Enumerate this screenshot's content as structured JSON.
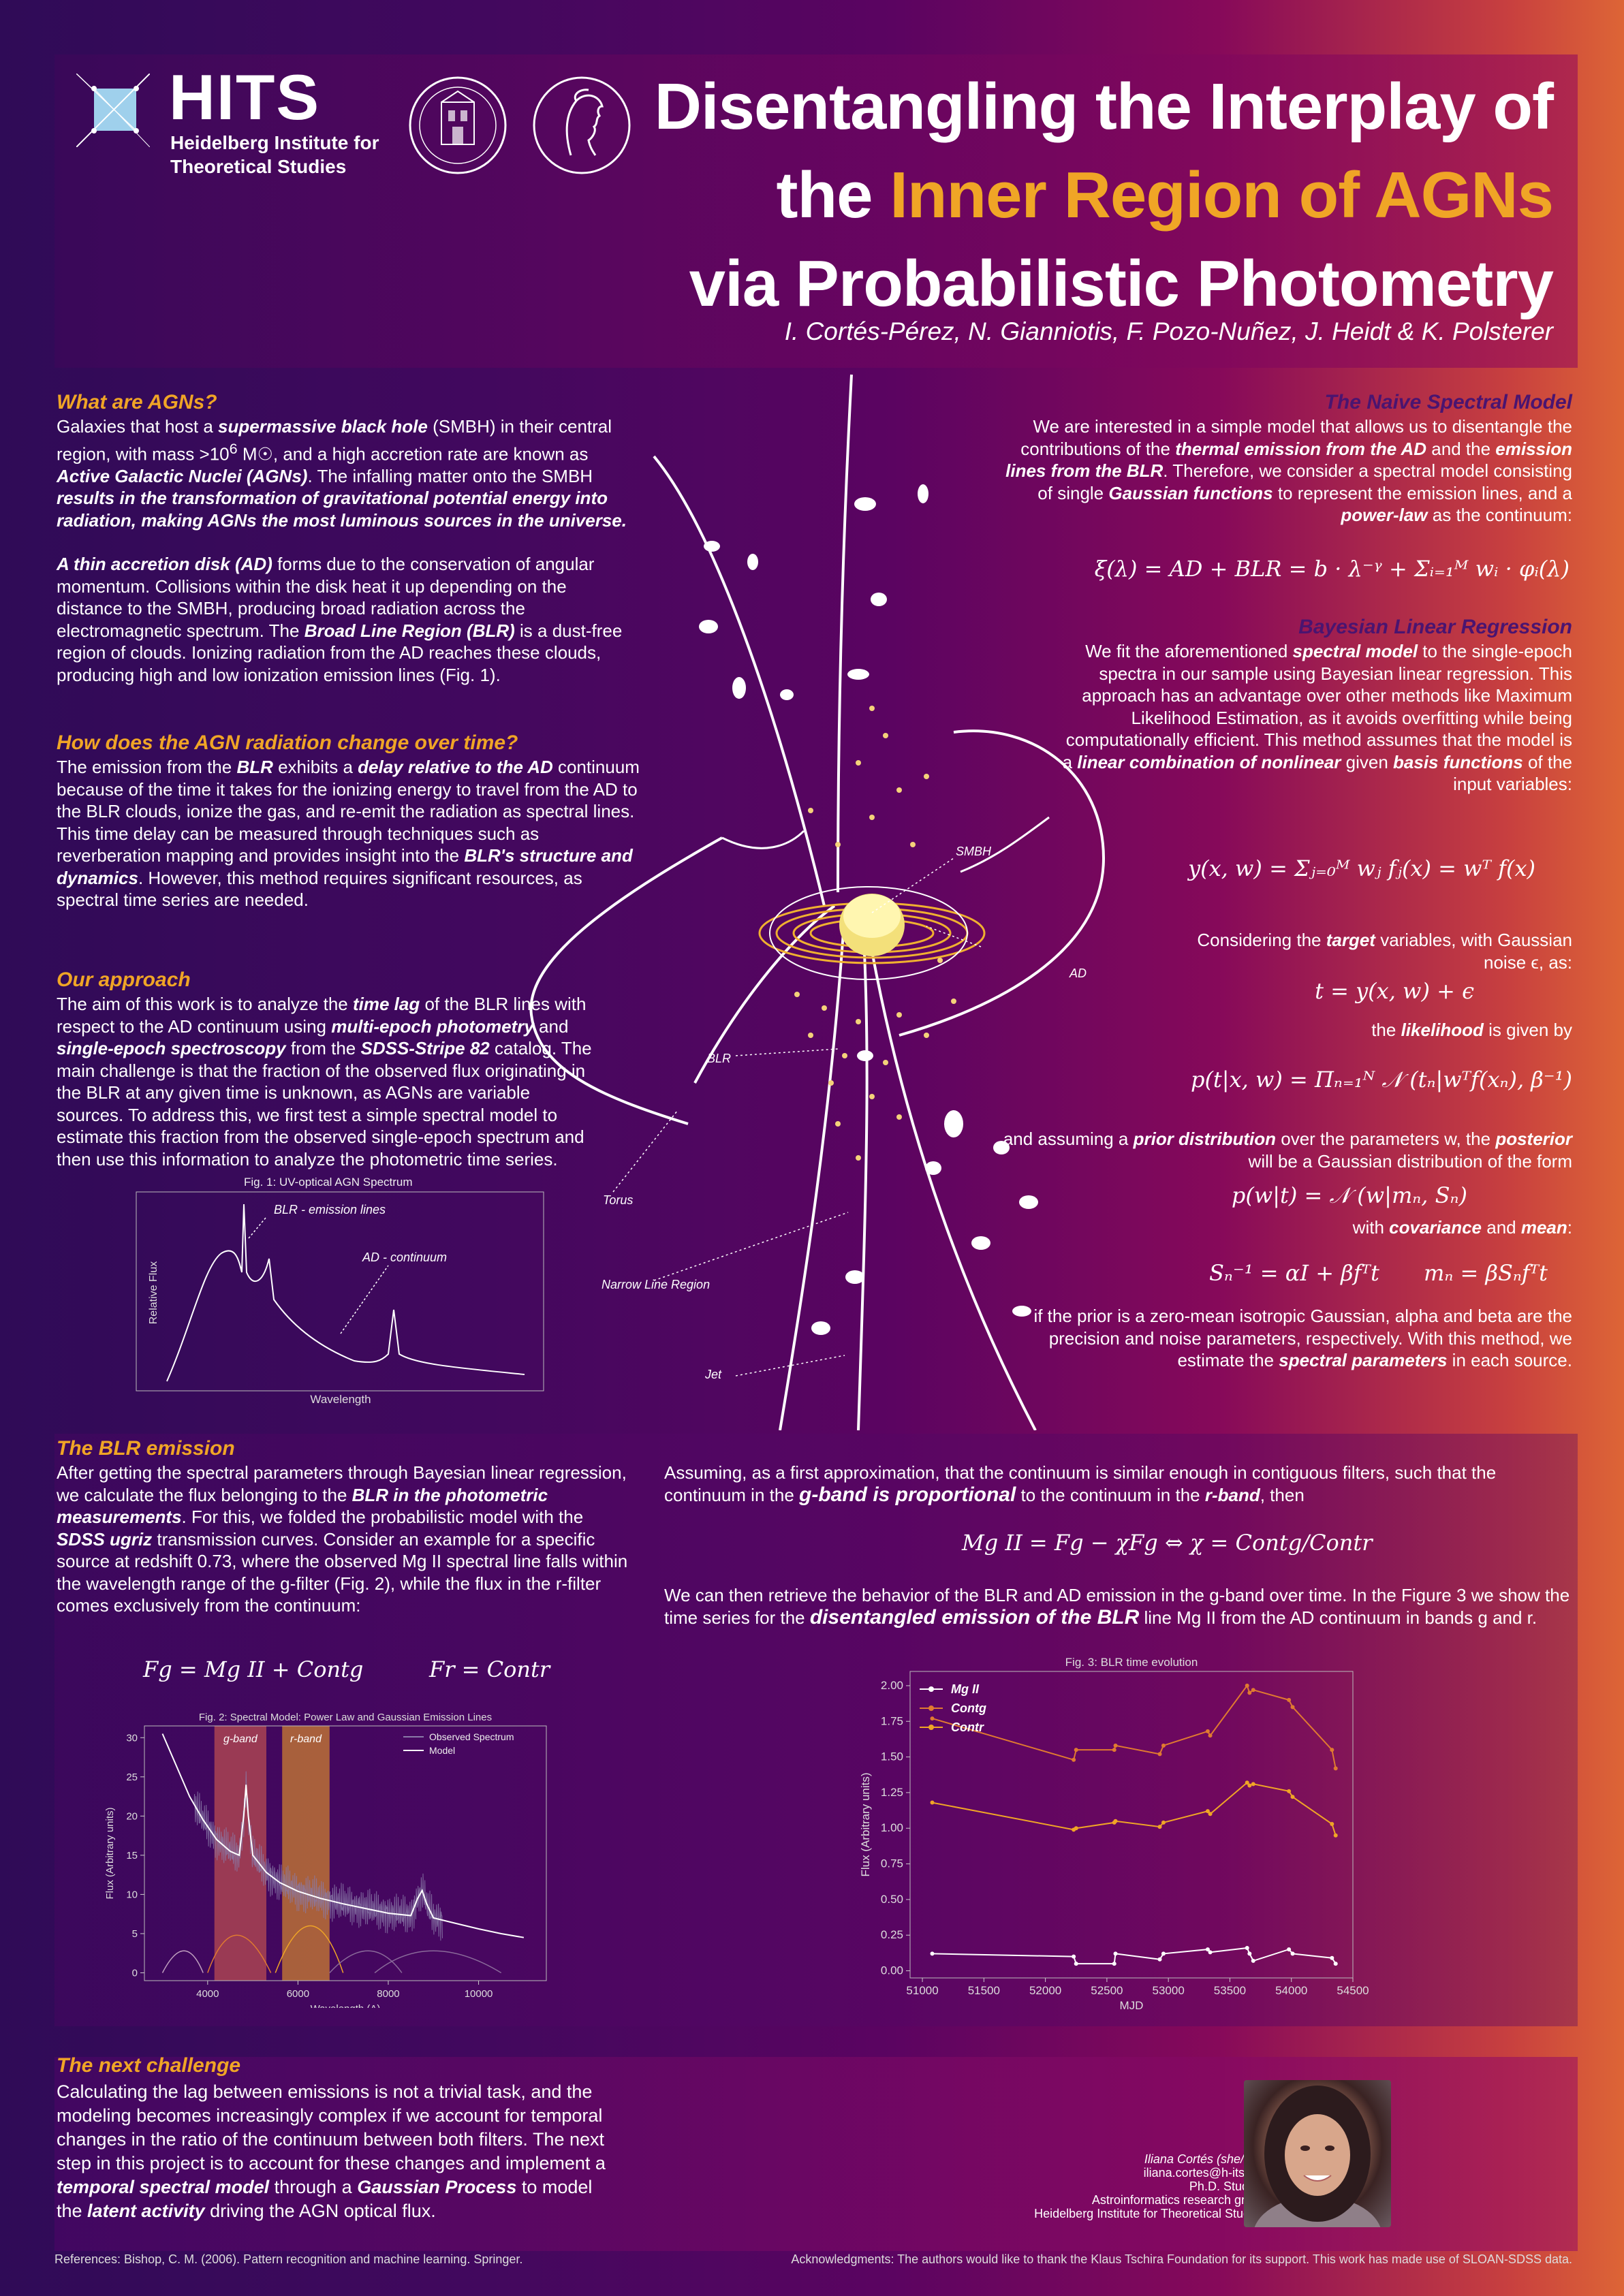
{
  "header": {
    "hits": "HITS",
    "hits_sub_1": "Heidelberg Institute for",
    "hits_sub_2": "Theoretical Studies",
    "title_1": "Disentangling the Interplay of",
    "title_2a": "the ",
    "title_2b": "Inner Region of AGNs",
    "title_3": "via Probabilistic Photometry",
    "authors": "I. Cortés-Pérez, N. Gianniotis, F. Pozo-Nuñez, J. Heidt & K. Polsterer"
  },
  "what_agn": {
    "heading": "What are AGNs?",
    "p1_a": "Galaxies that host a ",
    "p1_b": "supermassive black hole",
    "p1_c": " (SMBH) in their central region, with mass >10",
    "p1_exp": "6",
    "p1_d": " M☉, and a high accretion rate are known as ",
    "p1_e": "Active Galactic Nuclei (AGNs)",
    "p1_f": ". The infalling matter onto the SMBH ",
    "p1_g": "results in the transformation of gravitational potential energy into radiation, making AGNs the most luminous sources in the universe.",
    "p2_a": "A thin accretion disk (AD)",
    "p2_b": " forms due to the conservation of angular momentum. Collisions within the disk heat it up depending on the distance to the SMBH, producing broad radiation across the electromagnetic spectrum. The ",
    "p2_c": "Broad Line Region (BLR)",
    "p2_d": " is a dust-free region of clouds. Ionizing radiation from the AD reaches these clouds, producing high and low ionization emission lines (Fig. 1)."
  },
  "change": {
    "heading": "How does the AGN radiation change over time?",
    "a": "The emission from the ",
    "b": "BLR",
    "c": " exhibits a ",
    "d": "delay relative to the AD",
    "e": " continuum because of the time it takes for the ionizing energy to travel from the AD to the BLR clouds, ionize the gas, and re-emit the radiation as spectral lines. This time delay can be measured through techniques such as reverberation mapping and provides insight into the ",
    "f": "BLR's structure and dynamics",
    "g": ". However, this method requires significant resources, as spectral time series are needed."
  },
  "approach": {
    "heading": "Our approach",
    "a": "The aim of this work is to analyze the ",
    "b": "time lag",
    "c": " of the BLR lines with respect to the AD continuum using ",
    "d": "multi-epoch photometry",
    "e": " and ",
    "f": "single-epoch spectroscopy",
    "g": " from the ",
    "h": "SDSS-Stripe 82",
    "i": " catalog.  The main challenge is that the fraction of the observed flux originating in the BLR at any given time is unknown, as AGNs are variable sources.  To address this, we first test a simple spectral model to estimate this fraction from the observed single-epoch spectrum and then use this information to analyze the photometric time series."
  },
  "fig1": {
    "caption": "Fig. 1: UV-optical AGN Spectrum",
    "label_blr": "BLR - emission lines",
    "label_ad": "AD - continuum",
    "ylabel": "Relative Flux",
    "xlabel": "Wavelength"
  },
  "diagram": {
    "smbh": "SMBH",
    "ad": "AD",
    "blr": "BLR",
    "torus": "Torus",
    "nlr": "Narrow Line Region",
    "jet": "Jet"
  },
  "naive": {
    "heading": "The Naive Spectral Model",
    "a": "We are interested in a simple model that allows us to disentangle the contributions of the ",
    "b": "thermal emission from the AD",
    "c": " and the ",
    "d": "emission lines from the BLR",
    "e": ". Therefore, we consider a spectral model consisting of single ",
    "f": "Gaussian functions",
    "g": " to represent the emission lines, and a ",
    "h": "power-law",
    "i": " as the continuum:",
    "eq": "ξ(λ) = AD + BLR = b · λ⁻ᵞ + Σᵢ₌₁ᴹ wᵢ · φᵢ(λ)"
  },
  "bayes": {
    "heading": "Bayesian Linear Regression",
    "a": "We fit the aforementioned ",
    "b": "spectral model",
    "c": " to the single-epoch spectra in our sample using Bayesian linear regression. This approach has an advantage over other methods like Maximum Likelihood Estimation, as it avoids overfitting while being computationally efficient. This method assumes that the model is a ",
    "d": "linear combination of nonlinear",
    "e": " given ",
    "f": "basis functions",
    "g": " of the input variables:",
    "eq1": "y(x, w) = Σⱼ₌₀ᴹ wⱼ fⱼ(x) = wᵀ f(x)",
    "t1a": "Considering the ",
    "t1b": "target",
    "t1c": " variables, with Gaussian noise ϵ, as:",
    "eq2": "t = y(x, w) + ϵ",
    "t2a": "the ",
    "t2b": "likelihood",
    "t2c": " is given by",
    "eq3": "p(t|x, w) = Πₙ₌₁ᴺ 𝒩 (tₙ|wᵀf(xₙ), β⁻¹)",
    "t3a": "and assuming a ",
    "t3b": "prior distribution",
    "t3c": " over the parameters w, the ",
    "t3d": "posterior",
    "t3e": " will be a Gaussian distribution of the form",
    "eq4": "p(w|t) = 𝒩 (w|mₙ, Sₙ)",
    "t4a": "with ",
    "t4b": "covariance",
    "t4c": " and ",
    "t4d": "mean",
    "t4e": ":",
    "eq5a": "Sₙ⁻¹ = αI + βfᵀt",
    "eq5b": "mₙ = βSₙfᵀt",
    "t5a": "if the prior is a zero-mean isotropic Gaussian, alpha and beta are the precision and noise parameters, respectively. With this method, we estimate the ",
    "t5b": "spectral parameters",
    "t5c": " in each source."
  },
  "blr_emission": {
    "heading": "The BLR emission",
    "a": "After getting the spectral parameters through Bayesian linear regression, we calculate the flux belonging to the ",
    "b": "BLR in the photometric measurements",
    "c": ". For this, we folded the probabilistic model with the ",
    "d": "SDSS ugriz",
    "e": " transmission curves. Consider an example for a specific source at redshift 0.73, where the observed Mg II spectral line  falls within the wavelength range of the g-filter (Fig. 2), while the flux in the r-filter comes exclusively from the continuum:",
    "eq_g": "Fg = Mg II + Contg",
    "eq_r": "Fr = Contr",
    "right_a": "Assuming, as a first approximation, that the continuum is similar enough in contiguous filters, such that the continuum in the ",
    "right_b": "g-band is proportional",
    "right_c": " to the continuum in the ",
    "right_d": "r-band",
    "right_e": ", then",
    "eq_chi": "Mg II = Fg − χFg ⇔ χ = Contg/Contr",
    "right2_a": "We can then retrieve the behavior of the BLR and AD emission in the g-band over time. In the Figure 3 we show the time series for the ",
    "right2_b": "disentangled emission of the BLR",
    "right2_c": " line Mg II from the AD continuum in bands g and r."
  },
  "next": {
    "heading": "The next challenge",
    "a": "Calculating the lag between emissions is not a trivial task, and the modeling becomes increasingly complex if we account for temporal changes in the ratio of the continuum between both filters. The next step in this project is to account for these changes and implement a ",
    "b": "temporal spectral model",
    "c": " through a ",
    "d": "Gaussian Process",
    "e": " to model the ",
    "f": "latent activity",
    "g": " driving the AGN optical flux."
  },
  "contact": {
    "name": "Iliana Cortés (she/her)",
    "email": "iliana.cortes@h-its.org",
    "role": "Ph.D. Student",
    "group": "Astroinformatics research group",
    "inst": "Heidelberg Institute for Theoretical Studies"
  },
  "footer": {
    "refs": "References: Bishop, C. M. (2006). Pattern recognition and machine learning. Springer.",
    "ack": "Acknowledgments: The authors would like to thank the Klaus Tschira Foundation for its support. This work has made use of SLOAN-SDSS data."
  },
  "chart_data": [
    {
      "type": "line",
      "title": "Fig. 2: Spectral Model: Power Law and Gaussian Emission Lines",
      "xlabel": "Wavelength (A)",
      "ylabel": "Flux (Arbitrary units)",
      "xlim": [
        2600,
        11500
      ],
      "ylim": [
        -1,
        31.5
      ],
      "xticks": [
        4000,
        6000,
        8000,
        10000
      ],
      "yticks": [
        0,
        5,
        10,
        15,
        20,
        25,
        30
      ],
      "bands": [
        {
          "name": "g-band",
          "x0": 4150,
          "x1": 5300,
          "color": "#c05050"
        },
        {
          "name": "r-band",
          "x0": 5650,
          "x1": 6700,
          "color": "#d4862e"
        }
      ],
      "series": [
        {
          "name": "Observed Spectrum",
          "color": "#8a7aa8"
        },
        {
          "name": "Model",
          "color": "#ffffff",
          "x": [
            3000,
            3300,
            3600,
            3900,
            4200,
            4500,
            4700,
            4800,
            4850,
            4900,
            5000,
            5300,
            5600,
            6000,
            6500,
            7000,
            7500,
            8000,
            8500,
            8650,
            8750,
            8850,
            9000,
            9500,
            10000,
            10500,
            11000
          ],
          "y": [
            30.5,
            26.5,
            22.5,
            19.5,
            17,
            15.5,
            15,
            20,
            24,
            20,
            15,
            12.8,
            11.5,
            10.4,
            9.5,
            8.8,
            8.2,
            7.6,
            7.3,
            9.5,
            10.5,
            8.8,
            7.0,
            6.3,
            5.6,
            5.0,
            4.5
          ]
        }
      ],
      "legend": "top-right"
    },
    {
      "type": "line",
      "title": "Fig. 3: BLR time evolution",
      "xlabel": "MJD",
      "ylabel": "Flux (Arbitrary units)",
      "xlim": [
        50900,
        54500
      ],
      "ylim": [
        -0.05,
        2.1
      ],
      "xticks": [
        51000,
        51500,
        52000,
        52500,
        53000,
        53500,
        54000,
        54500
      ],
      "yticks": [
        0.0,
        0.25,
        0.5,
        0.75,
        1.0,
        1.25,
        1.5,
        1.75,
        2.0
      ],
      "legend": "top-left",
      "series": [
        {
          "name": "Mg II",
          "color": "#ffffff",
          "x": [
            51080,
            52230,
            52250,
            52560,
            52570,
            52930,
            52960,
            53320,
            53340,
            53640,
            53660,
            53690,
            53980,
            54010,
            54330,
            54360
          ],
          "y": [
            0.12,
            0.1,
            0.05,
            0.05,
            0.12,
            0.08,
            0.12,
            0.15,
            0.13,
            0.16,
            0.12,
            0.07,
            0.15,
            0.12,
            0.09,
            0.05
          ]
        },
        {
          "name": "Contg",
          "color": "#e07a30",
          "x": [
            51080,
            52230,
            52250,
            52560,
            52570,
            52930,
            52960,
            53320,
            53340,
            53640,
            53660,
            53690,
            53980,
            54010,
            54330,
            54360
          ],
          "y": [
            1.77,
            1.48,
            1.55,
            1.55,
            1.58,
            1.52,
            1.58,
            1.68,
            1.65,
            2.0,
            1.95,
            1.97,
            1.9,
            1.85,
            1.55,
            1.42
          ]
        },
        {
          "name": "Contr",
          "color": "#f0a526",
          "x": [
            51080,
            52230,
            52250,
            52560,
            52570,
            52930,
            52960,
            53320,
            53340,
            53640,
            53660,
            53690,
            53980,
            54010,
            54330,
            54360
          ],
          "y": [
            1.18,
            0.99,
            1.0,
            1.04,
            1.05,
            1.01,
            1.04,
            1.12,
            1.1,
            1.32,
            1.3,
            1.31,
            1.26,
            1.22,
            1.03,
            0.95
          ]
        }
      ]
    }
  ]
}
